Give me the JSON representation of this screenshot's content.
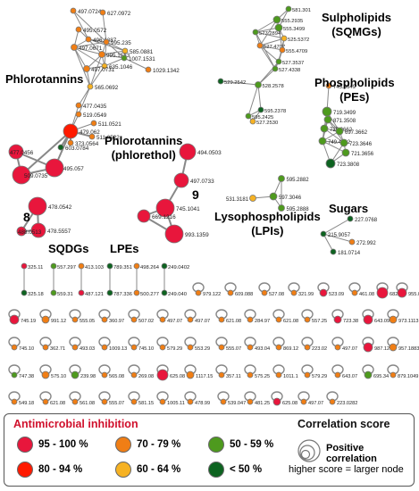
{
  "groups": {
    "phlorotannins": "Phlorotannins",
    "sqmg_1": "Sulpholipids",
    "sqmg_2": "(SQMGs)",
    "pe_1": "Phospholipids",
    "pe_2": "(PEs)",
    "phlorethol_1": "Phlorotannins",
    "phlorethol_2": "(phlorethol)",
    "lpi": "Lysophospholipids",
    "lpi_2": "(LPIs)",
    "sugars": "Sugars",
    "sqdg": "SQDGs",
    "lpe": "LPEs",
    "num_8": "8",
    "num_9": "9"
  },
  "node_labels": {
    "phloro": [
      "497.0724",
      "627.0972",
      "495.0572",
      "496.1387",
      "995.235",
      "585.0881",
      "497.0671",
      "995.1533",
      "1007.1531",
      "635.1046",
      "497.0731",
      "1029.1342",
      "565.0692",
      "477.0435",
      "519.0549",
      "511.0521",
      "479.062",
      "511.0522",
      "373.0564",
      "603.0784",
      "477.0456",
      "495.057",
      "509.0735"
    ],
    "sqmg": [
      "581.301",
      "555.2935",
      "555.3499",
      "577.2894",
      "525.5372",
      "527.4707",
      "555.4709",
      "527.3537",
      "527.4338",
      "529.2542",
      "528.2578",
      "595.2378",
      "595.2425",
      "527.2530"
    ],
    "pe": [
      "745.3649",
      "719.3499",
      "871.3508",
      "725.0662",
      "697.3662",
      "749.4002",
      "723.3646",
      "721.3656",
      "723.3808"
    ],
    "phlorethol": [
      "494.0503",
      "497.0733",
      "745.1041",
      "669.1216",
      "993.1359"
    ],
    "eight": [
      "478.0542",
      "478.5557",
      "488.0513"
    ],
    "lpi": [
      "595.2882",
      "597.3046",
      "531.3181",
      "595.2888"
    ],
    "sugars": [
      "227.0768",
      "215.9057",
      "272.992",
      "181.0714"
    ],
    "pairs_top": [
      "325.11",
      "557.297",
      "413.103",
      "789.351",
      "498.264",
      "249.0402"
    ],
    "pairs_bot": [
      "325.18",
      "559.31",
      "487.121",
      "787.336",
      "500.277",
      "249.040"
    ],
    "row1": [
      "979.122",
      "609.088",
      "527.08",
      "321.99",
      "523.09",
      "461.08",
      "682.09",
      "955.0995"
    ],
    "row2": [
      "745.19",
      "991.12",
      "555.05",
      "360.97",
      "507.02",
      "497.07",
      "497.07",
      "621.08",
      "284.97",
      "621.08",
      "557.25",
      "723.38",
      "643.09",
      "973.1113"
    ],
    "row3": [
      "745.10",
      "362.71",
      "493.03",
      "1009.13",
      "745.10",
      "579.29",
      "553.29",
      "555.07",
      "493.04",
      "869.12",
      "223.02",
      "497.07",
      "987.12",
      "957.1883"
    ],
    "row4": [
      "747.38",
      "575.10",
      "239.98",
      "565.08",
      "269.08",
      "625.08",
      "1117.15",
      "357.11",
      "575.25",
      "1011.1",
      "579.29",
      "643.07",
      "695.34",
      "879.1049"
    ],
    "row5": [
      "549.18",
      "621.08",
      "561.08",
      "555.07",
      "581.15",
      "1005.11",
      "478.99",
      "539.047",
      "481.25",
      "625.08",
      "497.07",
      "223.0282"
    ]
  },
  "legend": {
    "title": "Antimicrobial inhibition",
    "items": [
      {
        "label": "95 - 100 %",
        "color": "#e8163c"
      },
      {
        "label": "80 - 94 %",
        "color": "#ff1a00"
      },
      {
        "label": "70 - 79 %",
        "color": "#f07e15"
      },
      {
        "label": "60 - 64 %",
        "color": "#f6b223"
      },
      {
        "label": "50 - 59 %",
        "color": "#4e9a1e"
      },
      {
        "label": "< 50 %",
        "color": "#0d6320"
      }
    ],
    "corr_title": "Correlation score",
    "corr_pos": "Positive correlation",
    "corr_size": "higher score = larger node"
  }
}
